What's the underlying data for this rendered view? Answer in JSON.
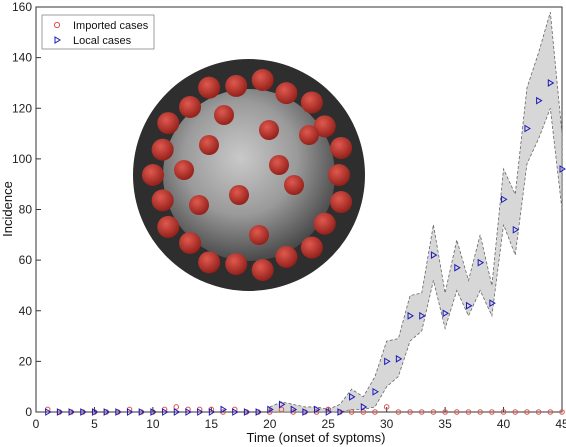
{
  "chart_data": {
    "type": "scatter",
    "xlabel": "Time (onset of syptoms)",
    "ylabel": "Incidence",
    "xlim": [
      0,
      45
    ],
    "ylim": [
      0,
      160
    ],
    "xticks": [
      0,
      5,
      10,
      15,
      20,
      25,
      30,
      35,
      40,
      45
    ],
    "yticks": [
      0,
      20,
      40,
      60,
      80,
      100,
      120,
      140,
      160
    ],
    "grid": false,
    "legend_position": "top-left",
    "series": [
      {
        "name": "Imported cases",
        "marker": "circle",
        "color": "#d9534f",
        "x": [
          1,
          2,
          3,
          4,
          5,
          6,
          7,
          8,
          9,
          10,
          11,
          12,
          13,
          14,
          15,
          16,
          17,
          18,
          19,
          20,
          21,
          22,
          23,
          24,
          25,
          26,
          27,
          28,
          29,
          30,
          31,
          32,
          33,
          34,
          35,
          36,
          37,
          38,
          39,
          40,
          41,
          42,
          43,
          44,
          45
        ],
        "y": [
          1,
          0,
          0,
          0,
          0,
          0,
          0,
          1,
          0,
          0,
          1,
          2,
          1,
          1,
          1,
          0,
          1,
          0,
          0,
          0,
          1,
          0,
          0,
          0,
          1,
          0,
          0,
          0,
          0,
          2,
          0,
          0,
          0,
          0,
          0,
          0,
          0,
          0,
          0,
          0,
          0,
          0,
          0,
          0,
          0
        ]
      },
      {
        "name": "Local cases",
        "marker": "triangle-right",
        "color": "#1a1ab8",
        "x": [
          1,
          2,
          3,
          4,
          5,
          6,
          7,
          8,
          9,
          10,
          11,
          12,
          13,
          14,
          15,
          16,
          17,
          18,
          19,
          20,
          21,
          22,
          23,
          24,
          25,
          26,
          27,
          28,
          29,
          30,
          31,
          32,
          33,
          34,
          35,
          36,
          37,
          38,
          39,
          40,
          41,
          42,
          43,
          44,
          45
        ],
        "y": [
          0,
          0,
          0,
          0,
          0,
          0,
          0,
          0,
          0,
          0,
          0,
          0,
          0,
          0,
          0,
          1,
          0,
          0,
          0,
          1,
          3,
          1,
          0,
          1,
          0,
          0,
          6,
          2,
          8,
          20,
          21,
          38,
          38,
          62,
          39,
          57,
          42,
          59,
          43,
          84,
          72,
          112,
          123,
          130,
          96
        ]
      }
    ],
    "uncertainty_band": {
      "color": "#bdbdbd",
      "x": [
        20,
        21,
        22,
        23,
        24,
        25,
        26,
        27,
        28,
        29,
        30,
        31,
        32,
        33,
        34,
        35,
        36,
        37,
        38,
        39,
        40,
        41,
        42,
        43,
        44,
        45
      ],
      "lower": [
        0,
        0,
        0,
        0,
        0,
        0,
        0,
        1,
        1,
        2,
        10,
        14,
        28,
        32,
        52,
        33,
        48,
        38,
        48,
        38,
        74,
        62,
        98,
        108,
        120,
        80
      ],
      "upper": [
        2,
        4,
        3,
        2,
        2,
        1,
        3,
        9,
        6,
        14,
        28,
        29,
        46,
        47,
        74,
        47,
        68,
        52,
        70,
        50,
        96,
        86,
        128,
        142,
        158,
        110
      ]
    },
    "image_overlay": "coronavirus-illustration"
  }
}
